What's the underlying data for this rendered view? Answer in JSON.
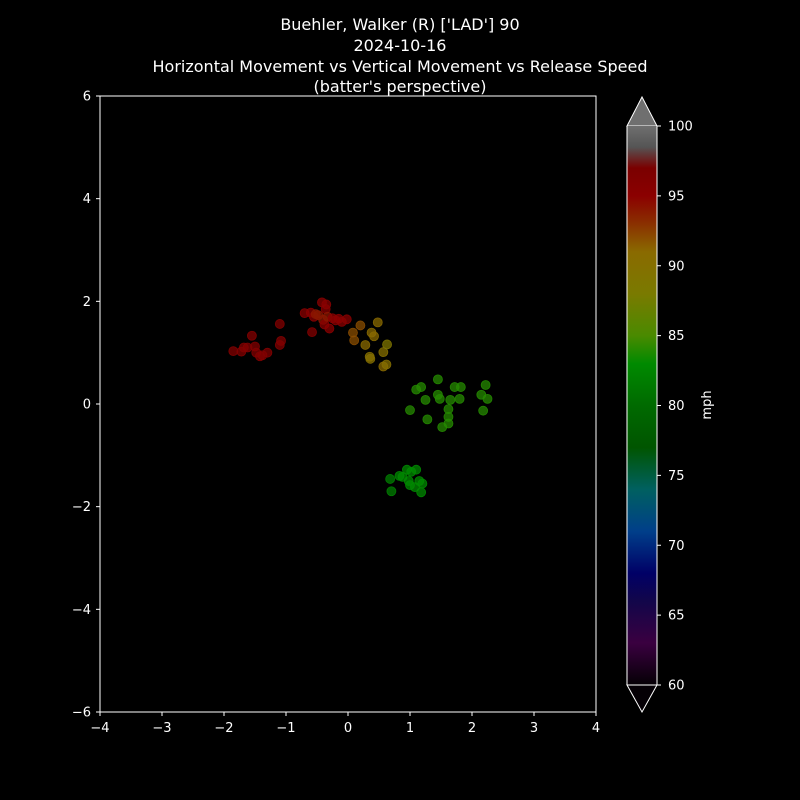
{
  "chart_data": {
    "type": "scatter",
    "title_lines": [
      "Buehler, Walker (R) ['LAD'] 90",
      "2024-10-16",
      "Horizontal Movement vs Vertical Movement vs Release Speed",
      "(batter's perspective)"
    ],
    "xlabel": "",
    "ylabel": "",
    "xlim": [
      -4,
      4
    ],
    "ylim": [
      -6,
      6
    ],
    "x_ticks": [
      -4,
      -3,
      -2,
      -1,
      0,
      1,
      2,
      3,
      4
    ],
    "y_ticks": [
      -6,
      -4,
      -2,
      0,
      2,
      4,
      6
    ],
    "grid": false,
    "background": "#000000",
    "colorbar": {
      "label": "mph",
      "min": 60,
      "max": 100,
      "ticks": [
        60,
        65,
        70,
        75,
        80,
        85,
        90,
        95,
        100
      ],
      "extend": "both",
      "stops": [
        {
          "v": 60,
          "color": "#050005"
        },
        {
          "v": 63,
          "color": "#3a0040"
        },
        {
          "v": 66,
          "color": "#12064a"
        },
        {
          "v": 68,
          "color": "#000066"
        },
        {
          "v": 71,
          "color": "#003f8a"
        },
        {
          "v": 74,
          "color": "#006060"
        },
        {
          "v": 77,
          "color": "#005500"
        },
        {
          "v": 80,
          "color": "#006a00"
        },
        {
          "v": 83,
          "color": "#008a00"
        },
        {
          "v": 85,
          "color": "#4a8a00"
        },
        {
          "v": 88,
          "color": "#7a7a00"
        },
        {
          "v": 91,
          "color": "#8a6a00"
        },
        {
          "v": 93,
          "color": "#8a3000"
        },
        {
          "v": 95,
          "color": "#8b0000"
        },
        {
          "v": 97,
          "color": "#7a0000"
        },
        {
          "v": 98.5,
          "color": "#555555"
        },
        {
          "v": 100,
          "color": "#6f6f6f"
        }
      ]
    },
    "series": [
      {
        "points": [
          {
            "x": -1.85,
            "y": 1.03,
            "speed": 96
          },
          {
            "x": -1.72,
            "y": 1.02,
            "speed": 96
          },
          {
            "x": -1.68,
            "y": 1.1,
            "speed": 96
          },
          {
            "x": -1.62,
            "y": 1.1,
            "speed": 96
          },
          {
            "x": -1.55,
            "y": 1.33,
            "speed": 96
          },
          {
            "x": -1.5,
            "y": 1.12,
            "speed": 96
          },
          {
            "x": -1.48,
            "y": 1.0,
            "speed": 96
          },
          {
            "x": -1.42,
            "y": 0.93,
            "speed": 96
          },
          {
            "x": -1.38,
            "y": 0.95,
            "speed": 96
          },
          {
            "x": -1.3,
            "y": 1.0,
            "speed": 96
          },
          {
            "x": -1.1,
            "y": 1.15,
            "speed": 96
          },
          {
            "x": -1.08,
            "y": 1.23,
            "speed": 96
          },
          {
            "x": -1.1,
            "y": 1.56,
            "speed": 96
          },
          {
            "x": -0.7,
            "y": 1.77,
            "speed": 95
          },
          {
            "x": -0.6,
            "y": 1.78,
            "speed": 95
          },
          {
            "x": -0.58,
            "y": 1.4,
            "speed": 96
          },
          {
            "x": -0.55,
            "y": 1.7,
            "speed": 95
          },
          {
            "x": -0.52,
            "y": 1.75,
            "speed": 94
          },
          {
            "x": -0.48,
            "y": 1.73,
            "speed": 94
          },
          {
            "x": -0.42,
            "y": 1.98,
            "speed": 95
          },
          {
            "x": -0.4,
            "y": 1.64,
            "speed": 94
          },
          {
            "x": -0.38,
            "y": 1.55,
            "speed": 95
          },
          {
            "x": -0.36,
            "y": 1.85,
            "speed": 95
          },
          {
            "x": -0.35,
            "y": 1.94,
            "speed": 95
          },
          {
            "x": -0.33,
            "y": 1.7,
            "speed": 94
          },
          {
            "x": -0.3,
            "y": 1.47,
            "speed": 95
          },
          {
            "x": -0.25,
            "y": 1.67,
            "speed": 95
          },
          {
            "x": -0.2,
            "y": 1.63,
            "speed": 95
          },
          {
            "x": -0.15,
            "y": 1.66,
            "speed": 95
          },
          {
            "x": -0.1,
            "y": 1.6,
            "speed": 95
          },
          {
            "x": -0.02,
            "y": 1.65,
            "speed": 95
          },
          {
            "x": 0.08,
            "y": 1.39,
            "speed": 92
          },
          {
            "x": 0.1,
            "y": 1.24,
            "speed": 92
          },
          {
            "x": 0.2,
            "y": 1.53,
            "speed": 92
          },
          {
            "x": 0.28,
            "y": 1.15,
            "speed": 91
          },
          {
            "x": 0.35,
            "y": 0.92,
            "speed": 90
          },
          {
            "x": 0.36,
            "y": 0.88,
            "speed": 90
          },
          {
            "x": 0.38,
            "y": 1.39,
            "speed": 91
          },
          {
            "x": 0.42,
            "y": 1.32,
            "speed": 91
          },
          {
            "x": 0.48,
            "y": 1.59,
            "speed": 91
          },
          {
            "x": 0.57,
            "y": 1.01,
            "speed": 90
          },
          {
            "x": 0.57,
            "y": 0.73,
            "speed": 91
          },
          {
            "x": 0.62,
            "y": 0.77,
            "speed": 90
          },
          {
            "x": 0.63,
            "y": 1.16,
            "speed": 89
          },
          {
            "x": 1.0,
            "y": -0.12,
            "speed": 84
          },
          {
            "x": 1.1,
            "y": 0.28,
            "speed": 84
          },
          {
            "x": 1.18,
            "y": 0.33,
            "speed": 84
          },
          {
            "x": 1.25,
            "y": 0.08,
            "speed": 84
          },
          {
            "x": 1.28,
            "y": -0.3,
            "speed": 84
          },
          {
            "x": 1.45,
            "y": 0.48,
            "speed": 84
          },
          {
            "x": 1.45,
            "y": 0.18,
            "speed": 84
          },
          {
            "x": 1.48,
            "y": 0.1,
            "speed": 84
          },
          {
            "x": 1.52,
            "y": -0.45,
            "speed": 84
          },
          {
            "x": 1.62,
            "y": -0.1,
            "speed": 84
          },
          {
            "x": 1.62,
            "y": -0.25,
            "speed": 84
          },
          {
            "x": 1.62,
            "y": -0.38,
            "speed": 84
          },
          {
            "x": 1.65,
            "y": 0.08,
            "speed": 84
          },
          {
            "x": 1.72,
            "y": 0.33,
            "speed": 84
          },
          {
            "x": 1.8,
            "y": 0.1,
            "speed": 84
          },
          {
            "x": 1.82,
            "y": 0.33,
            "speed": 84
          },
          {
            "x": 2.15,
            "y": 0.18,
            "speed": 84
          },
          {
            "x": 2.18,
            "y": -0.13,
            "speed": 84
          },
          {
            "x": 2.22,
            "y": 0.37,
            "speed": 84
          },
          {
            "x": 2.25,
            "y": 0.1,
            "speed": 84
          },
          {
            "x": 0.68,
            "y": -1.46,
            "speed": 82
          },
          {
            "x": 0.7,
            "y": -1.7,
            "speed": 82
          },
          {
            "x": 0.83,
            "y": -1.4,
            "speed": 83
          },
          {
            "x": 0.88,
            "y": -1.42,
            "speed": 83
          },
          {
            "x": 0.95,
            "y": -1.28,
            "speed": 83
          },
          {
            "x": 0.98,
            "y": -1.5,
            "speed": 83
          },
          {
            "x": 1.0,
            "y": -1.58,
            "speed": 83
          },
          {
            "x": 1.02,
            "y": -1.32,
            "speed": 83
          },
          {
            "x": 1.08,
            "y": -1.62,
            "speed": 83
          },
          {
            "x": 1.1,
            "y": -1.28,
            "speed": 83
          },
          {
            "x": 1.15,
            "y": -1.5,
            "speed": 83
          },
          {
            "x": 1.18,
            "y": -1.72,
            "speed": 83
          },
          {
            "x": 1.2,
            "y": -1.55,
            "speed": 83
          }
        ]
      }
    ]
  }
}
